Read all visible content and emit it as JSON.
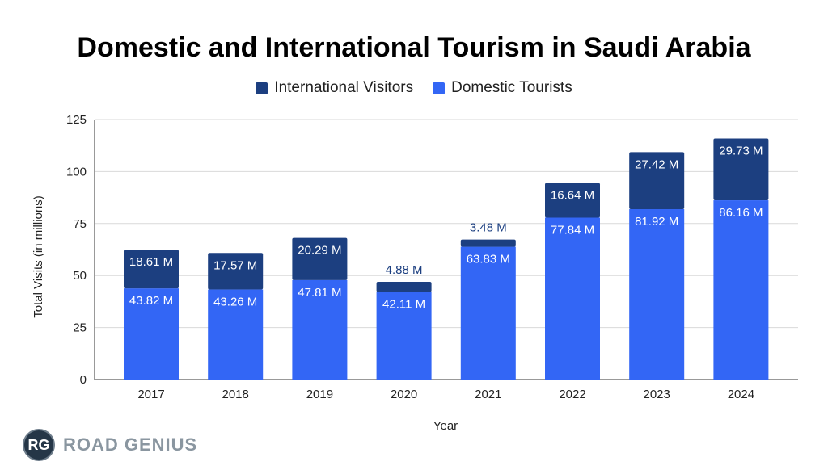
{
  "chart_data": {
    "type": "bar",
    "stacked": true,
    "title": "Domestic and International Tourism in Saudi Arabia",
    "xlabel": "Year",
    "ylabel": "Total Visits (in millions)",
    "ylim": [
      0,
      125
    ],
    "yticks": [
      0,
      25,
      50,
      75,
      100,
      125
    ],
    "grid": true,
    "legend_position": "top",
    "categories": [
      "2017",
      "2018",
      "2019",
      "2020",
      "2021",
      "2022",
      "2023",
      "2024"
    ],
    "series": [
      {
        "name": "Domestic Tourists",
        "color": "#3366f5",
        "values": [
          43.82,
          43.26,
          47.81,
          42.11,
          63.83,
          77.84,
          81.92,
          86.16
        ],
        "labels": [
          "43.82 M",
          "43.26 M",
          "47.81 M",
          "42.11 M",
          "63.83 M",
          "77.84 M",
          "81.92 M",
          "86.16 M"
        ]
      },
      {
        "name": "International Visitors",
        "color": "#1c3f80",
        "values": [
          18.61,
          17.57,
          20.29,
          4.88,
          3.48,
          16.64,
          27.42,
          29.73
        ],
        "labels": [
          "18.61 M",
          "17.57 M",
          "20.29 M",
          "4.88 M",
          "3.48 M",
          "16.64 M",
          "27.42 M",
          "29.73 M"
        ]
      }
    ]
  },
  "logo": {
    "initials": "RG",
    "text": "ROAD GENIUS"
  }
}
